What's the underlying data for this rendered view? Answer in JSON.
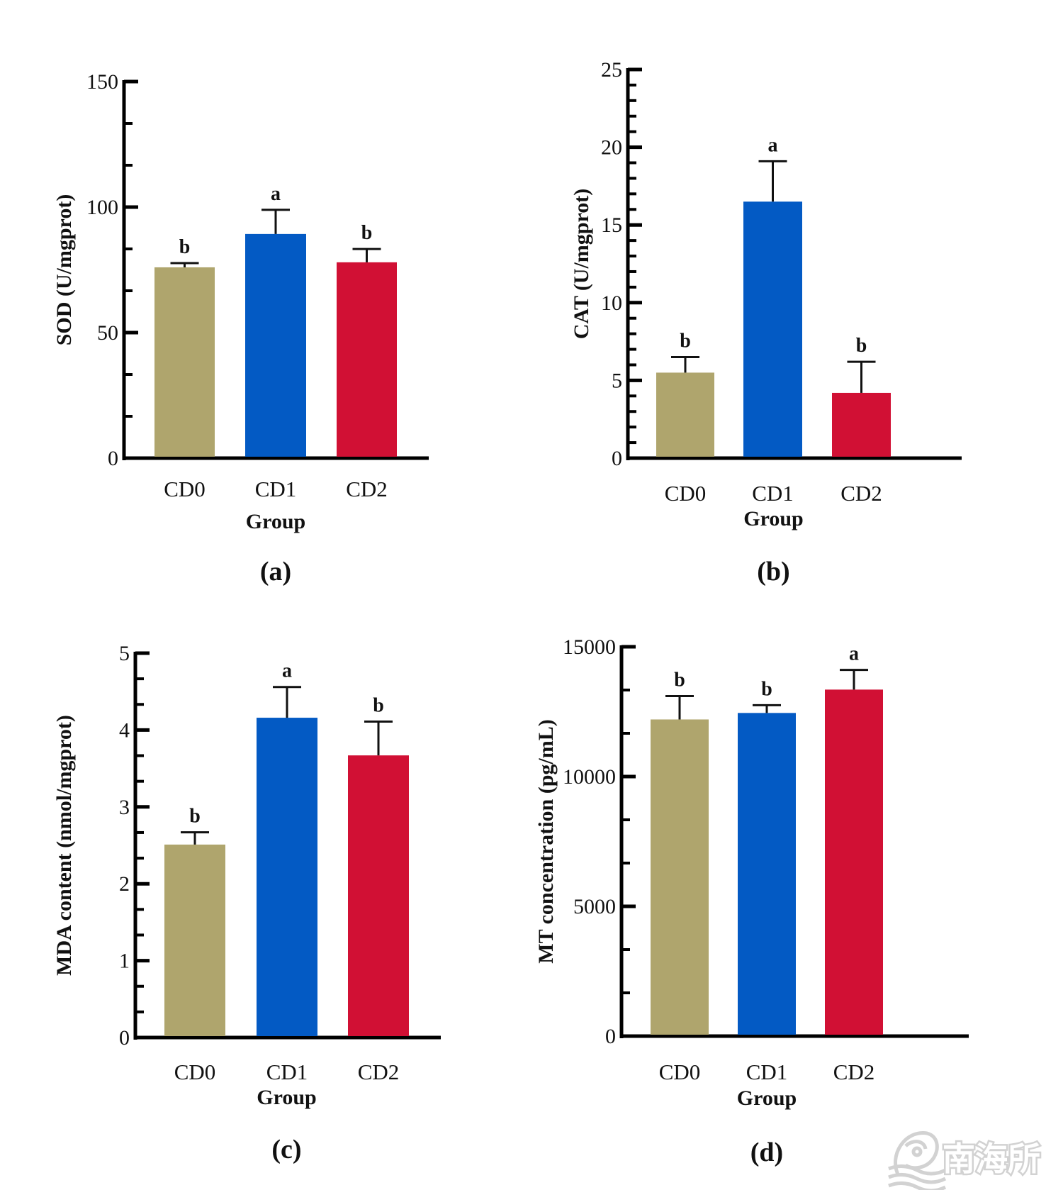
{
  "figure": {
    "watermark": {
      "text": "南海所",
      "icon": "institute-logo-icon"
    }
  },
  "colors": {
    "CD0": "#AFA56D",
    "CD1": "#035AC4",
    "CD2": "#D11034",
    "axis": "#000000"
  },
  "chart_data": [
    {
      "id": "a",
      "type": "bar",
      "panel_label": "(a)",
      "title": "",
      "xlabel": "Group",
      "ylabel": "SOD (U/mgprot)",
      "categories": [
        "CD0",
        "CD1",
        "CD2"
      ],
      "values": [
        76.0,
        89.3,
        78.0
      ],
      "errors": [
        1.7,
        9.6,
        5.3
      ],
      "significance": [
        "b",
        "a",
        "b"
      ],
      "ylim": [
        0,
        150
      ],
      "yticks": [
        0,
        50,
        100,
        150
      ],
      "minor_ticks_per_major": 3,
      "grid": false,
      "legend": "none"
    },
    {
      "id": "b",
      "type": "bar",
      "panel_label": "(b)",
      "title": "",
      "xlabel": "Group",
      "ylabel": "CAT (U/mgprot)",
      "categories": [
        "CD0",
        "CD1",
        "CD2"
      ],
      "values": [
        5.5,
        16.5,
        4.2
      ],
      "errors": [
        1.0,
        2.6,
        2.0
      ],
      "significance": [
        "b",
        "a",
        "b"
      ],
      "ylim": [
        0,
        25
      ],
      "yticks": [
        0,
        5,
        10,
        15,
        20,
        25
      ],
      "minor_ticks_per_major": 5,
      "grid": false,
      "legend": "none"
    },
    {
      "id": "c",
      "type": "bar",
      "panel_label": "(c)",
      "title": "",
      "xlabel": "Group",
      "ylabel": "MDA content (nmol/mgprot)",
      "categories": [
        "CD0",
        "CD1",
        "CD2"
      ],
      "values": [
        2.51,
        4.16,
        3.67
      ],
      "errors": [
        0.16,
        0.4,
        0.44
      ],
      "significance": [
        "b",
        "a",
        "b"
      ],
      "ylim": [
        0,
        5
      ],
      "yticks": [
        0,
        1,
        2,
        3,
        4,
        5
      ],
      "minor_ticks_per_major": 3,
      "grid": false,
      "legend": "none"
    },
    {
      "id": "d",
      "type": "bar",
      "panel_label": "(d)",
      "title": "",
      "xlabel": "Group",
      "ylabel": "MT concentration (pg/mL)",
      "categories": [
        "CD0",
        "CD1",
        "CD2"
      ],
      "values": [
        12200,
        12450,
        13350
      ],
      "errors": [
        900,
        300,
        760
      ],
      "significance": [
        "b",
        "b",
        "a"
      ],
      "ylim": [
        0,
        15000
      ],
      "yticks": [
        0,
        5000,
        10000,
        15000
      ],
      "minor_ticks_per_major": 3,
      "grid": false,
      "legend": "none"
    }
  ]
}
